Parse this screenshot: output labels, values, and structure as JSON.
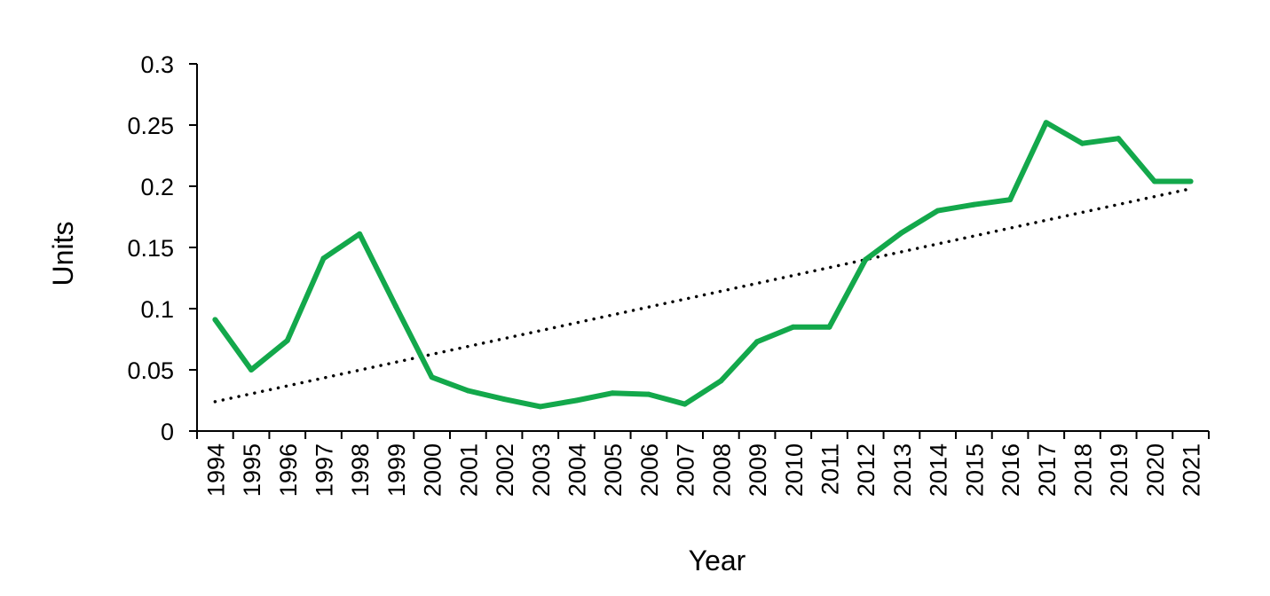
{
  "chart_data": {
    "type": "line",
    "title": "",
    "xlabel": "Year",
    "ylabel": "Units",
    "categories": [
      "1994",
      "1995",
      "1996",
      "1997",
      "1998",
      "1999",
      "2000",
      "2001",
      "2002",
      "2003",
      "2004",
      "2005",
      "2006",
      "2007",
      "2008",
      "2009",
      "2010",
      "2011",
      "2012",
      "2013",
      "2014",
      "2015",
      "2016",
      "2017",
      "2018",
      "2019",
      "2020",
      "2021"
    ],
    "series": [
      {
        "values": [
          0.091,
          0.05,
          0.074,
          0.141,
          0.161,
          0.102,
          0.044,
          0.033,
          0.026,
          0.02,
          0.025,
          0.031,
          0.03,
          0.022,
          0.041,
          0.073,
          0.085,
          0.085,
          0.14,
          0.162,
          0.18,
          0.185,
          0.189,
          0.252,
          0.235,
          0.239,
          0.204,
          0.204
        ],
        "color": "#13a84b",
        "style": "solid"
      }
    ],
    "trendline": {
      "type": "linear",
      "start": 0.024,
      "end": 0.198,
      "color": "#000000",
      "style": "dotted"
    },
    "ylim": [
      0,
      0.3
    ],
    "yticks": [
      "0",
      "0.05",
      "0.1",
      "0.15",
      "0.2",
      "0.25",
      "0.3"
    ],
    "ytick_values": [
      0,
      0.05,
      0.1,
      0.15,
      0.2,
      0.25,
      0.3
    ],
    "grid": false,
    "legend": "none"
  }
}
